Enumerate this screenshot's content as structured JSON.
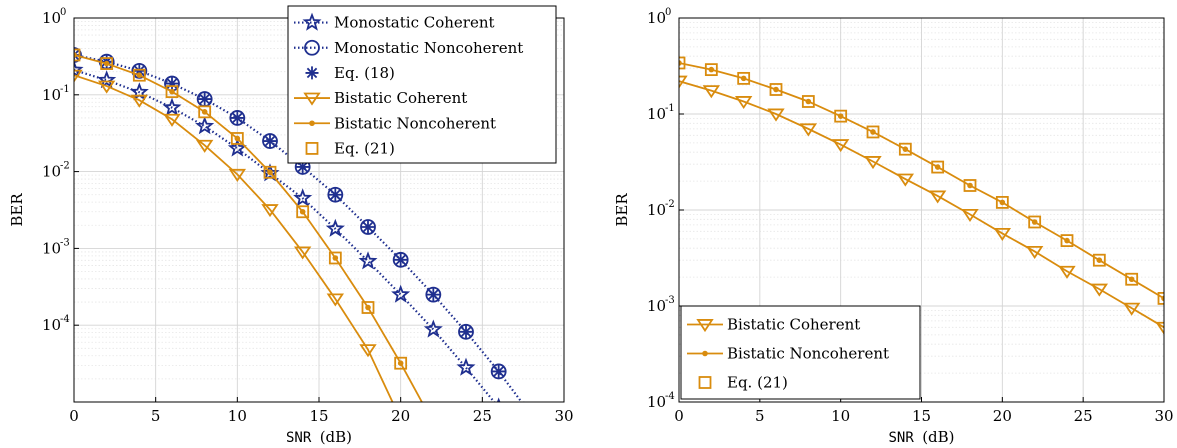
{
  "chart_data": [
    {
      "type": "line",
      "xlabel_prefix": "SNR",
      "xlabel_suffix": "(dB)",
      "ylabel": "BER",
      "xlim": [
        0,
        30
      ],
      "ylim_log10": [
        -5,
        0
      ],
      "y_scale": "log",
      "grid": true,
      "legend_position": "top-right",
      "x_ticks": [
        "0",
        "5",
        "10",
        "15",
        "20",
        "25",
        "30"
      ],
      "y_ticks": [
        {
          "base": "10",
          "exp": "0"
        },
        {
          "base": "10",
          "exp": "-1"
        },
        {
          "base": "10",
          "exp": "-2"
        },
        {
          "base": "10",
          "exp": "-3"
        },
        {
          "base": "10",
          "exp": "-4"
        }
      ],
      "series": [
        {
          "name": "Monostatic Coherent",
          "color": "#1f2f8f",
          "line": "dotted",
          "marker": "star",
          "x": [
            0,
            2,
            4,
            6,
            8,
            10,
            12,
            14,
            16,
            18,
            20,
            22,
            24,
            26,
            27.7
          ],
          "y": [
            0.21,
            0.155,
            0.108,
            0.068,
            0.039,
            0.02,
            0.0095,
            0.0045,
            0.0018,
            0.00068,
            0.00025,
            8.8e-05,
            2.8e-05,
            8.5e-06,
            1e-05
          ]
        },
        {
          "name": "Monostatic Noncoherent",
          "color": "#1f2f8f",
          "line": "dotted",
          "marker": "circle",
          "x": [
            0,
            2,
            4,
            6,
            8,
            10,
            12,
            14,
            16,
            18,
            20,
            22,
            24,
            26,
            27.4
          ],
          "y": [
            0.33,
            0.27,
            0.205,
            0.14,
            0.088,
            0.05,
            0.025,
            0.0115,
            0.005,
            0.0019,
            0.00071,
            0.00025,
            8.2e-05,
            2.5e-05,
            1e-05
          ]
        },
        {
          "name": "Eq. (18)",
          "color": "#1f2f8f",
          "line": "none",
          "marker": "asterisk",
          "x": [
            0,
            2,
            4,
            6,
            8,
            10,
            12,
            14,
            16,
            18,
            20,
            22,
            24,
            26
          ],
          "y": [
            0.33,
            0.27,
            0.205,
            0.14,
            0.088,
            0.05,
            0.025,
            0.0115,
            0.005,
            0.0019,
            0.00071,
            0.00025,
            8.2e-05,
            2.5e-05
          ]
        },
        {
          "name": "Bistatic Coherent",
          "color": "#d98c0e",
          "line": "solid",
          "marker": "triangle-down",
          "x": [
            0,
            2,
            4,
            6,
            8,
            10,
            12,
            14,
            16,
            18,
            19.5
          ],
          "y": [
            0.18,
            0.13,
            0.085,
            0.048,
            0.022,
            0.0092,
            0.0032,
            0.0009,
            0.00022,
            4.8e-05,
            1e-05
          ]
        },
        {
          "name": "Bistatic Noncoherent",
          "color": "#d98c0e",
          "line": "solid",
          "marker": "dot",
          "x": [
            0,
            2,
            4,
            6,
            8,
            10,
            12,
            14,
            16,
            18,
            20,
            21.3
          ],
          "y": [
            0.33,
            0.255,
            0.18,
            0.11,
            0.06,
            0.027,
            0.0098,
            0.003,
            0.00075,
            0.00017,
            3.2e-05,
            1e-05
          ]
        },
        {
          "name": "Eq. (21)",
          "color": "#d98c0e",
          "line": "none",
          "marker": "square",
          "x": [
            0,
            2,
            4,
            6,
            8,
            10,
            12,
            14,
            16,
            18,
            20
          ],
          "y": [
            0.33,
            0.255,
            0.18,
            0.11,
            0.06,
            0.027,
            0.0098,
            0.003,
            0.00075,
            0.00017,
            3.2e-05
          ]
        }
      ]
    },
    {
      "type": "line",
      "xlabel_prefix": "SNR",
      "xlabel_suffix": "(dB)",
      "ylabel": "BER",
      "xlim": [
        0,
        30
      ],
      "ylim_log10": [
        -4,
        0
      ],
      "y_scale": "log",
      "grid": true,
      "legend_position": "bottom-left",
      "x_ticks": [
        "0",
        "5",
        "10",
        "15",
        "20",
        "25",
        "30"
      ],
      "y_ticks": [
        {
          "base": "10",
          "exp": "0"
        },
        {
          "base": "10",
          "exp": "-1"
        },
        {
          "base": "10",
          "exp": "-2"
        },
        {
          "base": "10",
          "exp": "-3"
        },
        {
          "base": "10",
          "exp": "-4"
        }
      ],
      "series": [
        {
          "name": "Bistatic Coherent",
          "color": "#d98c0e",
          "line": "solid",
          "marker": "triangle-down",
          "x": [
            0,
            2,
            4,
            6,
            8,
            10,
            12,
            14,
            16,
            18,
            20,
            22,
            24,
            26,
            28,
            30
          ],
          "y": [
            0.22,
            0.175,
            0.135,
            0.1,
            0.07,
            0.048,
            0.032,
            0.021,
            0.014,
            0.009,
            0.0057,
            0.0037,
            0.0023,
            0.0015,
            0.00095,
            0.0006
          ]
        },
        {
          "name": "Bistatic Noncoherent",
          "color": "#d98c0e",
          "line": "solid",
          "marker": "dot",
          "x": [
            0,
            2,
            4,
            6,
            8,
            10,
            12,
            14,
            16,
            18,
            20,
            22,
            24,
            26,
            28,
            30
          ],
          "y": [
            0.34,
            0.29,
            0.235,
            0.18,
            0.135,
            0.095,
            0.065,
            0.043,
            0.028,
            0.018,
            0.012,
            0.0075,
            0.0048,
            0.003,
            0.0019,
            0.0012
          ]
        },
        {
          "name": "Eq. (21)",
          "color": "#d98c0e",
          "line": "none",
          "marker": "square",
          "x": [
            0,
            2,
            4,
            6,
            8,
            10,
            12,
            14,
            16,
            18,
            20,
            22,
            24,
            26,
            28,
            30
          ],
          "y": [
            0.34,
            0.29,
            0.235,
            0.18,
            0.135,
            0.095,
            0.065,
            0.043,
            0.028,
            0.018,
            0.012,
            0.0075,
            0.0048,
            0.003,
            0.0019,
            0.0012
          ]
        }
      ]
    }
  ]
}
